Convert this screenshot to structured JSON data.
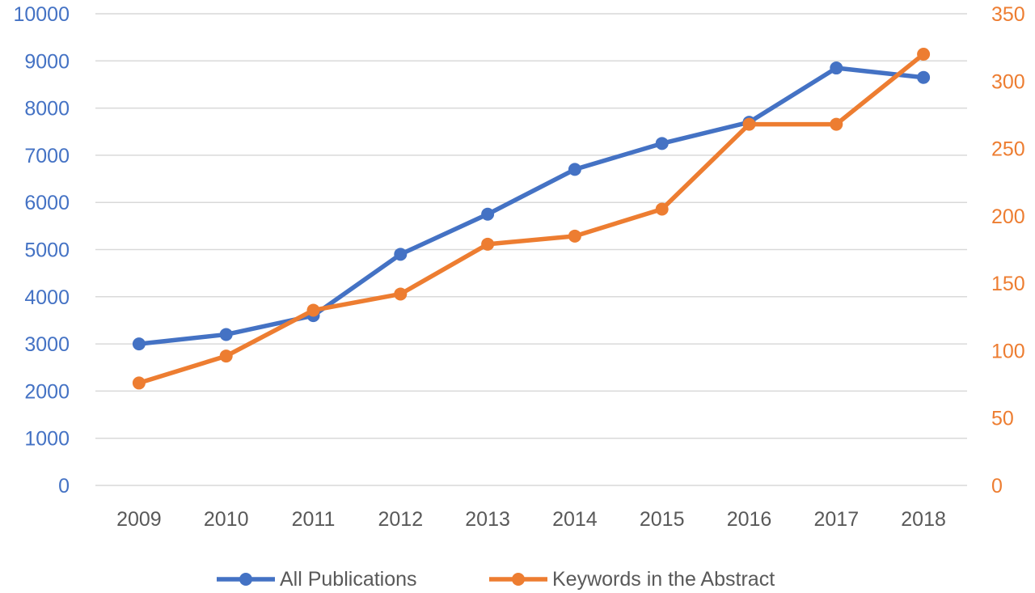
{
  "chart_data": {
    "type": "line",
    "title": "",
    "xlabel": "",
    "ylabel": "",
    "categories": [
      "2009",
      "2010",
      "2011",
      "2012",
      "2013",
      "2014",
      "2015",
      "2016",
      "2017",
      "2018"
    ],
    "y_left": {
      "min": 0,
      "max": 10000,
      "step": 1000,
      "ticks": [
        "0",
        "1000",
        "2000",
        "3000",
        "4000",
        "5000",
        "6000",
        "7000",
        "8000",
        "9000",
        "10000"
      ]
    },
    "y_right": {
      "min": 0,
      "max": 350,
      "step": 50,
      "ticks": [
        "0",
        "50",
        "100",
        "150",
        "200",
        "250",
        "300",
        "350"
      ]
    },
    "grid": true,
    "legend_position": "bottom",
    "series": [
      {
        "name": "All Publications",
        "axis": "left",
        "color": "#4472C4",
        "values": [
          3000,
          3200,
          3600,
          4900,
          5750,
          6700,
          7250,
          7700,
          8850,
          8650
        ]
      },
      {
        "name": "Keywords in the Abstract",
        "axis": "right",
        "color": "#ED7D31",
        "values": [
          76,
          96,
          130,
          142,
          179,
          185,
          205,
          268,
          268,
          320
        ]
      }
    ]
  }
}
